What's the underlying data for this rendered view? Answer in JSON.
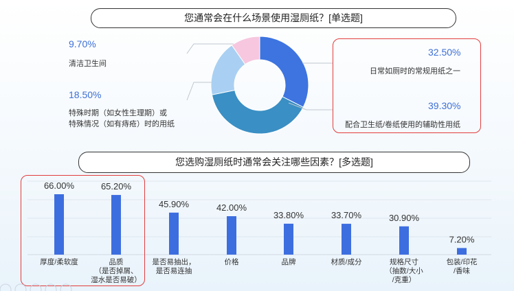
{
  "q1": {
    "title": "您通常会在什么场景使用湿厕纸？[单选题]",
    "items": [
      {
        "pct": "9.70%",
        "label": "清洁卫生间"
      },
      {
        "pct": "18.50%",
        "label_line1": "特殊时期（如女性生理期）或",
        "label_line2": "特殊情况（如有痔疮）时的用纸"
      },
      {
        "pct": "32.50%",
        "label": "日常如厕时的常规用纸之一"
      },
      {
        "pct": "39.30%",
        "label": "配合卫生纸/卷纸使用的辅助性用纸"
      }
    ]
  },
  "q2": {
    "title": "您选购湿厕纸时通常会关注哪些因素？[多选题]"
  },
  "chart_data": [
    {
      "type": "pie",
      "title": "您通常会在什么场景使用湿厕纸？[单选题]",
      "donut": true,
      "slices": [
        {
          "label": "日常如厕时的常规用纸之一",
          "value": 32.5,
          "color": "#3d74e0"
        },
        {
          "label": "配合卫生纸/卷纸使用的辅助性用纸",
          "value": 39.3,
          "color": "#3a8fc4"
        },
        {
          "label": "特殊时期（如女性生理期）或特殊情况（如有痔疮）时的用纸",
          "value": 18.5,
          "color": "#a9d0f2"
        },
        {
          "label": "清洁卫生间",
          "value": 9.7,
          "color": "#f6c7df"
        }
      ]
    },
    {
      "type": "bar",
      "title": "您选购湿厕纸时通常会关注哪些因素？[多选题]",
      "categories": [
        [
          "厚度/柔软度"
        ],
        [
          "品质",
          "（是否掉屑、",
          "湿水是否易破）"
        ],
        [
          "是否易抽出，",
          "是否易连抽"
        ],
        [
          "价格"
        ],
        [
          "品牌"
        ],
        [
          "材质/成分"
        ],
        [
          "规格尺寸",
          "（抽数/大小",
          "/克重）"
        ],
        [
          "包装/印花",
          "/香味"
        ]
      ],
      "values": [
        66.0,
        65.2,
        45.9,
        42.0,
        33.8,
        33.7,
        30.9,
        7.2
      ],
      "value_labels": [
        "66.00%",
        "65.20%",
        "45.90%",
        "42.00%",
        "33.80%",
        "33.70%",
        "30.90%",
        "7.20%"
      ],
      "color": "#3d6ee0",
      "ylim": [
        0,
        100
      ]
    }
  ],
  "colors": {
    "accent": "#3c6fd6",
    "highlight": "#e23c3c"
  }
}
